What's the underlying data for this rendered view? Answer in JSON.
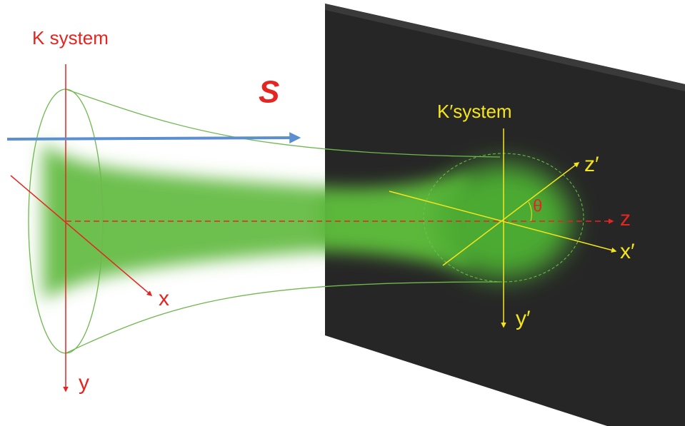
{
  "labels": {
    "k_system": "K system",
    "s": "S",
    "k_prime_system": "K′system",
    "x": "x",
    "y": "y",
    "z": "z",
    "z_prime": "z′",
    "x_prime": "x′",
    "y_prime": "y′",
    "theta": "θ"
  }
}
